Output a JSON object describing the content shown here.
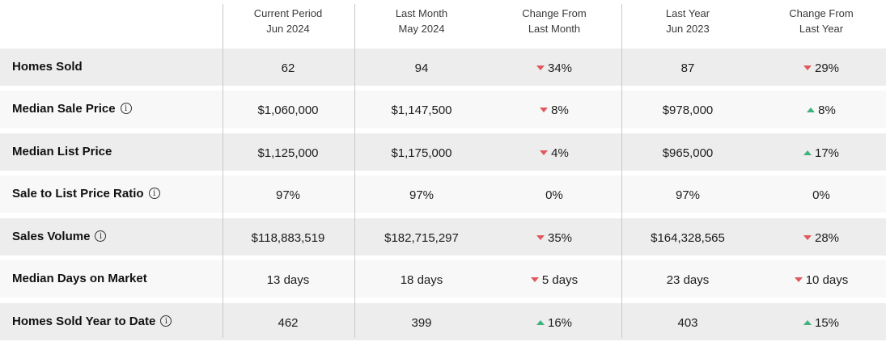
{
  "columns": [
    {
      "line1": "Current Period",
      "line2": "Jun 2024"
    },
    {
      "line1": "Last Month",
      "line2": "May 2024"
    },
    {
      "line1": "Change From",
      "line2": "Last Month"
    },
    {
      "line1": "Last Year",
      "line2": "Jun 2023"
    },
    {
      "line1": "Change From",
      "line2": "Last Year"
    }
  ],
  "rows": [
    {
      "label": "Homes Sold",
      "info": false,
      "current": "62",
      "last_month": "94",
      "chg_month": "34%",
      "chg_month_dir": "down",
      "last_year": "87",
      "chg_year": "29%",
      "chg_year_dir": "down"
    },
    {
      "label": "Median Sale Price",
      "info": true,
      "current": "$1,060,000",
      "last_month": "$1,147,500",
      "chg_month": "8%",
      "chg_month_dir": "down",
      "last_year": "$978,000",
      "chg_year": "8%",
      "chg_year_dir": "up"
    },
    {
      "label": "Median List Price",
      "info": false,
      "current": "$1,125,000",
      "last_month": "$1,175,000",
      "chg_month": "4%",
      "chg_month_dir": "down",
      "last_year": "$965,000",
      "chg_year": "17%",
      "chg_year_dir": "up"
    },
    {
      "label": "Sale to List Price Ratio",
      "info": true,
      "current": "97%",
      "last_month": "97%",
      "chg_month": "0%",
      "chg_month_dir": "none",
      "last_year": "97%",
      "chg_year": "0%",
      "chg_year_dir": "none"
    },
    {
      "label": "Sales Volume",
      "info": true,
      "current": "$118,883,519",
      "last_month": "$182,715,297",
      "chg_month": "35%",
      "chg_month_dir": "down",
      "last_year": "$164,328,565",
      "chg_year": "28%",
      "chg_year_dir": "down"
    },
    {
      "label": "Median Days on Market",
      "info": false,
      "current": "13 days",
      "last_month": "18 days",
      "chg_month": "5 days",
      "chg_month_dir": "down",
      "last_year": "23 days",
      "chg_year": "10 days",
      "chg_year_dir": "down"
    },
    {
      "label": "Homes Sold Year to Date",
      "info": true,
      "current": "462",
      "last_month": "399",
      "chg_month": "16%",
      "chg_month_dir": "up",
      "last_year": "403",
      "chg_year": "15%",
      "chg_year_dir": "up"
    }
  ],
  "info_glyph": "i",
  "icons": {
    "info": "info-circle-icon",
    "down": "triangle-down-icon",
    "up": "triangle-up-icon"
  },
  "colors": {
    "down": "#e0585d",
    "up": "#3fb27f",
    "shade": "#ededed"
  }
}
